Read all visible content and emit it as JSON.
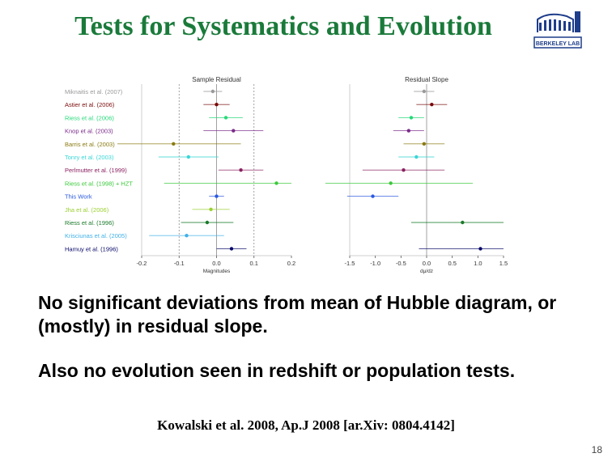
{
  "slide": {
    "title": "Tests for Systematics and Evolution",
    "logo_text": "BERKELEY LAB",
    "paragraph1": "No significant deviations from mean of Hubble diagram, or (mostly) in residual slope.",
    "paragraph2": "Also no evolution seen in redshift or population tests.",
    "citation": "Kowalski et al. 2008, Ap.J 2008 [ar.Xiv: 0804.4142]",
    "page_number": "18"
  },
  "chart_data": [
    {
      "type": "scatter",
      "title": "Sample Residual",
      "xlabel": "Magnitudes",
      "xlim": [
        -0.2,
        0.2
      ],
      "xticks": [
        -0.2,
        -0.1,
        0.0,
        0.1,
        0.2
      ],
      "xtick_labels": [
        "-0.2",
        "-0.1",
        "0.0",
        "0.1",
        "0.2"
      ],
      "vlines": [
        -0.1,
        0.0,
        0.1
      ],
      "categories": [
        "Miknaitis et al. (2007)",
        "Astier et al. (2006)",
        "Riess et al. (2006)",
        "Knop et al. (2003)",
        "Barris et al. (2003)",
        "Tonry et al. (2003)",
        "Perlmutter et al. (1999)",
        "Riess et al. (1998) + HZT",
        "This Work",
        "Jha et al. (2006)",
        "Riess et al. (1996)",
        "Krisciunas et al. (2005)",
        "Hamuy et al. (1996)"
      ],
      "colors": [
        "#9a9a9a",
        "#7a0a0a",
        "#25d978",
        "#7a2a8a",
        "#8a7a10",
        "#3ad6d6",
        "#8a2060",
        "#3ac83a",
        "#2a5ae0",
        "#9ad030",
        "#1a7a2a",
        "#40b0e8",
        "#0a0a6a"
      ],
      "values": [
        -0.01,
        0.0,
        0.025,
        0.045,
        -0.115,
        -0.075,
        0.065,
        0.16,
        0.0,
        -0.015,
        -0.025,
        -0.08,
        0.04
      ],
      "errors": [
        0.025,
        0.035,
        0.045,
        0.08,
        0.18,
        0.08,
        0.06,
        0.3,
        0.02,
        0.05,
        0.07,
        0.1,
        0.04
      ]
    },
    {
      "type": "scatter",
      "title": "Residual Slope",
      "xlabel": "dμ/dz",
      "xlim": [
        -1.5,
        1.5
      ],
      "xticks": [
        -1.5,
        -1.0,
        -0.5,
        0.0,
        0.5,
        1.0,
        1.5
      ],
      "xtick_labels": [
        "-1.5",
        "-1.0",
        "-0.5",
        "0.0",
        "0.5",
        "1.0",
        "1.5"
      ],
      "vlines": [
        0.0
      ],
      "values": [
        -0.05,
        0.1,
        -0.3,
        -0.35,
        -0.05,
        -0.2,
        -0.45,
        -0.7,
        -1.05,
        null,
        0.7,
        null,
        1.05
      ],
      "errors": [
        0.2,
        0.3,
        0.25,
        0.3,
        0.4,
        0.35,
        0.8,
        1.6,
        0.5,
        null,
        1.0,
        null,
        1.2
      ]
    }
  ]
}
